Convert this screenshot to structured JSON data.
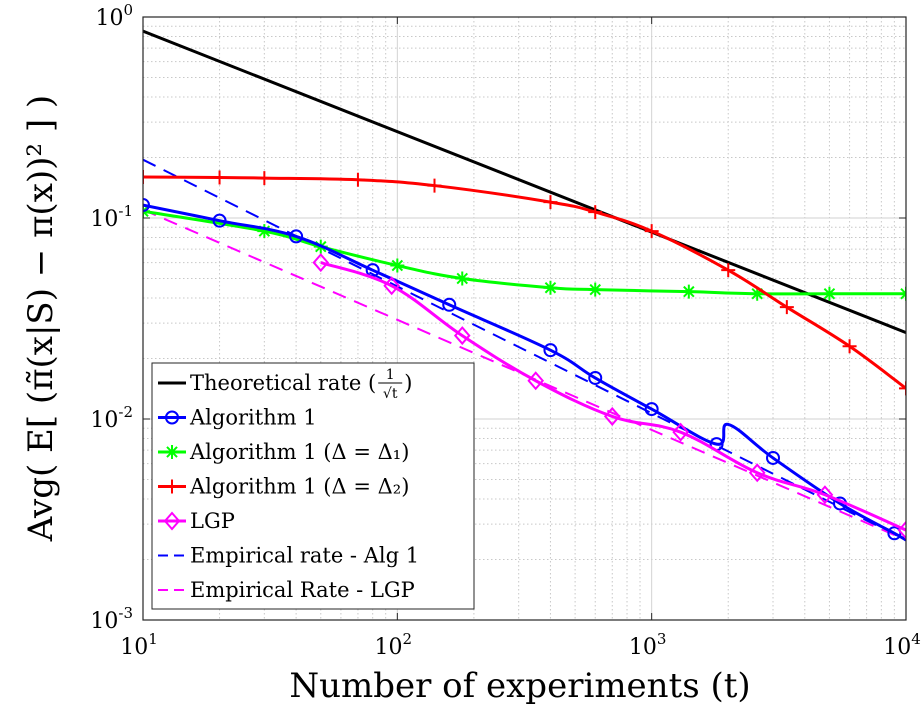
{
  "chart_data": {
    "type": "line",
    "x_scale": "log",
    "y_scale": "log",
    "xlim": [
      10,
      10000
    ],
    "ylim": [
      0.001,
      1
    ],
    "grid": true,
    "minor_grid": true,
    "legend_position": "bottom-left",
    "xlabel": "Number of experiments (t)",
    "ylabel": "Avg( E[ (π̃(x|S) − π(x))² ] )",
    "x_ticks": [
      {
        "value": 10,
        "base": "10",
        "exp": "1"
      },
      {
        "value": 100,
        "base": "10",
        "exp": "2"
      },
      {
        "value": 1000,
        "base": "10",
        "exp": "3"
      },
      {
        "value": 10000,
        "base": "10",
        "exp": "4"
      }
    ],
    "y_ticks": [
      {
        "value": 0.001,
        "base": "10",
        "exp": "-3"
      },
      {
        "value": 0.01,
        "base": "10",
        "exp": "-2"
      },
      {
        "value": 0.1,
        "base": "10",
        "exp": "-1"
      },
      {
        "value": 1,
        "base": "10",
        "exp": "0"
      }
    ],
    "series": [
      {
        "name": "Theoretical rate (1/√t)",
        "color": "#000000",
        "marker": "none",
        "dashed": false,
        "x": [
          10,
          10000
        ],
        "y": [
          0.85,
          0.0269
        ]
      },
      {
        "name": "Algorithm 1",
        "color": "#0000ff",
        "marker": "circle",
        "dashed": false,
        "x": [
          10,
          20,
          40,
          80,
          160,
          400,
          600,
          1000,
          1800,
          2000,
          3000,
          5500,
          9000,
          10000
        ],
        "y": [
          0.116,
          0.097,
          0.081,
          0.055,
          0.037,
          0.022,
          0.016,
          0.0112,
          0.0075,
          0.0094,
          0.0064,
          0.0038,
          0.0027,
          0.0025
        ],
        "marker_x": [
          10,
          20,
          40,
          80,
          160,
          400,
          600,
          1000,
          1800,
          3000,
          5500,
          9000
        ]
      },
      {
        "name": "Algorithm 1 (Δ = Δ₁)",
        "color": "#00ff00",
        "marker": "asterisk",
        "dashed": false,
        "x": [
          10,
          30,
          50,
          100,
          180,
          400,
          600,
          1400,
          2600,
          5000,
          10000
        ],
        "y": [
          0.108,
          0.086,
          0.072,
          0.058,
          0.05,
          0.045,
          0.044,
          0.043,
          0.042,
          0.042,
          0.042
        ]
      },
      {
        "name": "Algorithm 1 (Δ = Δ₂)",
        "color": "#ff0000",
        "marker": "plus",
        "dashed": false,
        "x": [
          10,
          20,
          30,
          70,
          140,
          400,
          600,
          1000,
          2000,
          3400,
          6000,
          10000
        ],
        "y": [
          0.16,
          0.159,
          0.158,
          0.155,
          0.145,
          0.12,
          0.107,
          0.086,
          0.055,
          0.036,
          0.023,
          0.0142
        ]
      },
      {
        "name": "LGP",
        "color": "#ff00ff",
        "marker": "diamond",
        "dashed": false,
        "x": [
          50,
          95,
          180,
          350,
          700,
          1300,
          2600,
          4800,
          10000
        ],
        "y": [
          0.06,
          0.046,
          0.026,
          0.0155,
          0.0103,
          0.0086,
          0.0054,
          0.0042,
          0.0028
        ]
      },
      {
        "name": "Empirical rate - Alg 1",
        "color": "#0000ff",
        "marker": "none",
        "dashed": true,
        "x": [
          10,
          10000
        ],
        "y": [
          0.195,
          0.0025
        ]
      },
      {
        "name": "Empirical Rate - LGP",
        "color": "#ff00ff",
        "marker": "none",
        "dashed": true,
        "x": [
          10,
          10000
        ],
        "y": [
          0.11,
          0.0025
        ]
      }
    ]
  },
  "legend": {
    "items": [
      {
        "label": "Theoretical rate (",
        "label_tail": ")",
        "fraction": {
          "num": "1",
          "den": "√t"
        },
        "color": "#000000",
        "marker": "none",
        "dashed": false
      },
      {
        "label": "Algorithm 1",
        "color": "#0000ff",
        "marker": "circle",
        "dashed": false
      },
      {
        "label": "Algorithm 1 (Δ = Δ₁)",
        "color": "#00ff00",
        "marker": "asterisk",
        "dashed": false
      },
      {
        "label": "Algorithm 1 (Δ = Δ₂)",
        "color": "#ff0000",
        "marker": "plus",
        "dashed": false
      },
      {
        "label": "LGP",
        "color": "#ff00ff",
        "marker": "diamond",
        "dashed": false
      },
      {
        "label": "Empirical rate - Alg 1",
        "color": "#0000ff",
        "marker": "none",
        "dashed": true
      },
      {
        "label": "Empirical Rate - LGP",
        "color": "#ff00ff",
        "marker": "none",
        "dashed": true
      }
    ]
  }
}
